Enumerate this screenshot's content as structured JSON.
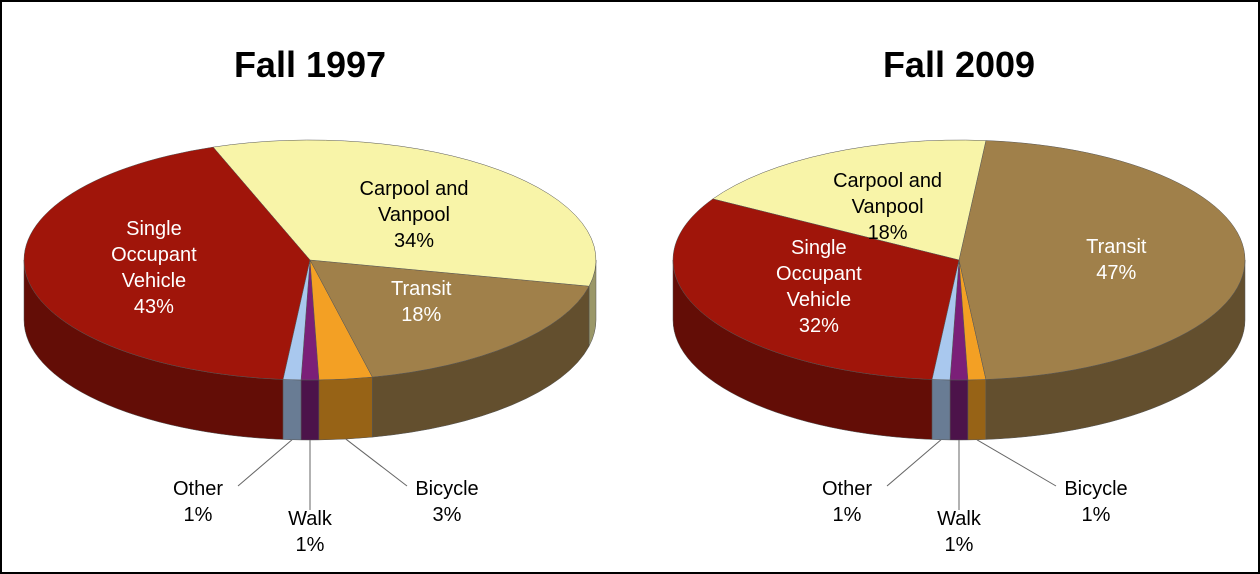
{
  "chart_data": [
    {
      "type": "pie",
      "title": "Fall 1997",
      "categories": [
        "Walk",
        "Bicycle",
        "Transit",
        "Carpool and Vanpool",
        "Single Occupant Vehicle",
        "Other"
      ],
      "values": [
        1,
        3,
        18,
        34,
        43,
        1
      ],
      "value_labels": [
        "1%",
        "3%",
        "18%",
        "34%",
        "43%",
        "1%"
      ],
      "colors": [
        "#7b1f78",
        "#f3a024",
        "#a0804a",
        "#f8f4a8",
        "#a0150a",
        "#a9c8ee"
      ]
    },
    {
      "type": "pie",
      "title": "Fall 2009",
      "categories": [
        "Walk",
        "Bicycle",
        "Transit",
        "Carpool and Vanpool",
        "Single Occupant Vehicle",
        "Other"
      ],
      "values": [
        1,
        1,
        47,
        18,
        32,
        1
      ],
      "value_labels": [
        "1%",
        "1%",
        "47%",
        "18%",
        "32%",
        "1%"
      ],
      "colors": [
        "#7b1f78",
        "#f3a024",
        "#a0804a",
        "#f8f4a8",
        "#a0150a",
        "#a9c8ee"
      ]
    }
  ]
}
